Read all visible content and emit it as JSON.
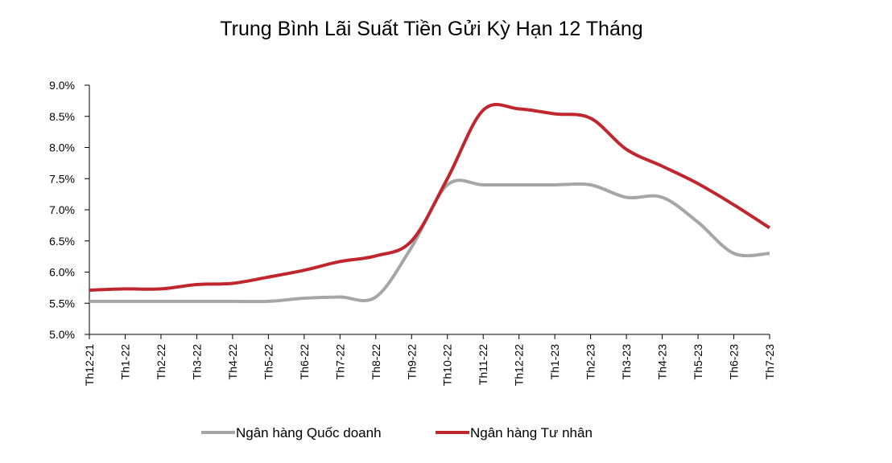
{
  "chart_data": {
    "type": "line",
    "title": "Trung Bình Lãi Suất Tiền Gửi Kỳ Hạn 12 Tháng",
    "categories": [
      "Th12-21",
      "Th1-22",
      "Th2-22",
      "Th3-22",
      "Th4-22",
      "Th5-22",
      "Th6-22",
      "Th7-22",
      "Th8-22",
      "Th9-22",
      "Th10-22",
      "Th11-22",
      "Th12-22",
      "Th1-23",
      "Th2-23",
      "Th3-23",
      "Th4-23",
      "Th5-23",
      "Th6-23",
      "Th7-23"
    ],
    "yticks": [
      "5.0%",
      "5.5%",
      "6.0%",
      "6.5%",
      "7.0%",
      "7.5%",
      "8.0%",
      "8.5%",
      "9.0%"
    ],
    "ylim": [
      5.0,
      9.0
    ],
    "grid": false,
    "legend_position": "bottom",
    "series": [
      {
        "name": "Ngân hàng Quốc doanh",
        "color": "#a6a6a6",
        "values": [
          5.53,
          5.53,
          5.53,
          5.53,
          5.53,
          5.53,
          5.58,
          5.6,
          5.6,
          6.4,
          7.4,
          7.4,
          7.4,
          7.4,
          7.4,
          7.2,
          7.2,
          6.8,
          6.3,
          6.3
        ]
      },
      {
        "name": "Ngân hàng Tư nhân",
        "color": "#c0262d",
        "values": [
          5.71,
          5.73,
          5.73,
          5.8,
          5.82,
          5.92,
          6.03,
          6.17,
          6.26,
          6.5,
          7.5,
          8.6,
          8.62,
          8.54,
          8.47,
          7.97,
          7.7,
          7.42,
          7.08,
          6.71
        ]
      }
    ]
  }
}
